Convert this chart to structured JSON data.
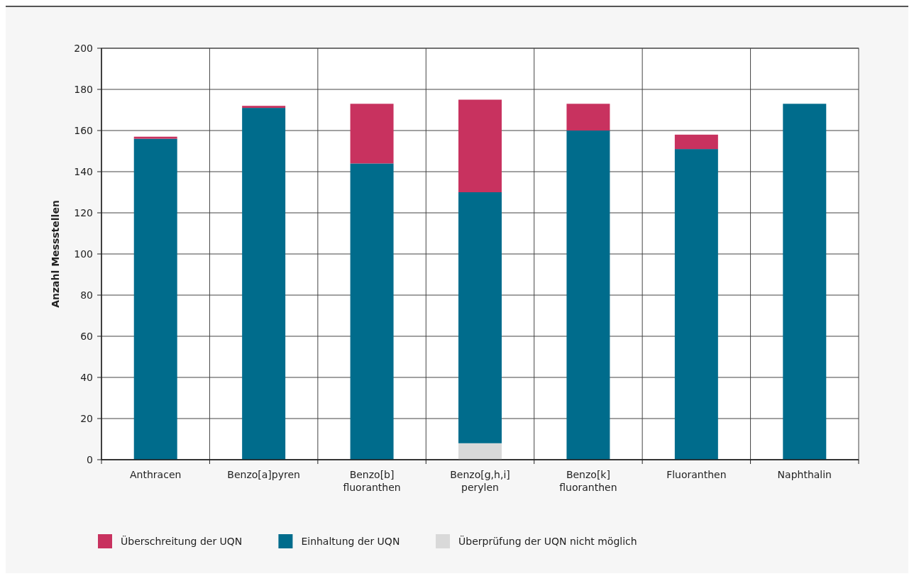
{
  "chart_data": {
    "type": "bar",
    "stacked": true,
    "ylabel": "Anzahl Messstellen",
    "categories": [
      "Anthracen",
      "Benzo[a]pyren",
      "Benzo[b]\nfluoranthen",
      "Benzo[g,h,i]\nperylen",
      "Benzo[k]\nfluoranthen",
      "Fluoranthen",
      "Naphthalin"
    ],
    "series": [
      {
        "name": "Überprüfung der UQN nicht möglich",
        "color": "#d9d9d9",
        "values": [
          0,
          0,
          0,
          8,
          0,
          0,
          0
        ]
      },
      {
        "name": "Einhaltung der UQN",
        "color": "#006c8c",
        "values": [
          156,
          171,
          144,
          122,
          160,
          151,
          173
        ]
      },
      {
        "name": "Überschreitung der UQN",
        "color": "#c8325f",
        "values": [
          1,
          1,
          29,
          45,
          13,
          7,
          0
        ]
      }
    ],
    "ylim": [
      0,
      200
    ],
    "yticks": [
      0,
      20,
      40,
      60,
      80,
      100,
      120,
      140,
      160,
      180,
      200
    ],
    "grid": true,
    "legend": "bottom"
  }
}
